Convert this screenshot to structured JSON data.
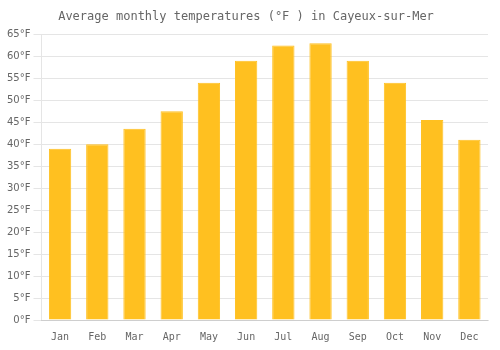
{
  "chart_data": {
    "type": "bar",
    "title": "Average monthly temperatures (°F ) in Cayeux-sur-Mer",
    "categories": [
      "Jan",
      "Feb",
      "Mar",
      "Apr",
      "May",
      "Jun",
      "Jul",
      "Aug",
      "Sep",
      "Oct",
      "Nov",
      "Dec"
    ],
    "values": [
      39,
      40,
      43.5,
      47.5,
      54,
      59,
      62.5,
      63,
      59,
      54,
      45.5,
      41
    ],
    "color": "#FFC020",
    "ylim": [
      0,
      65
    ],
    "yticks": [
      {
        "value": 0,
        "label": "0°F"
      },
      {
        "value": 5,
        "label": "5°F"
      },
      {
        "value": 10,
        "label": "10°F"
      },
      {
        "value": 15,
        "label": "15°F"
      },
      {
        "value": 20,
        "label": "20°F"
      },
      {
        "value": 25,
        "label": "25°F"
      },
      {
        "value": 30,
        "label": "30°F"
      },
      {
        "value": 35,
        "label": "35°F"
      },
      {
        "value": 40,
        "label": "40°F"
      },
      {
        "value": 45,
        "label": "45°F"
      },
      {
        "value": 50,
        "label": "50°F"
      },
      {
        "value": 55,
        "label": "55°F"
      },
      {
        "value": 60,
        "label": "60°F"
      },
      {
        "value": 65,
        "label": "65°F"
      }
    ],
    "grid": true
  }
}
